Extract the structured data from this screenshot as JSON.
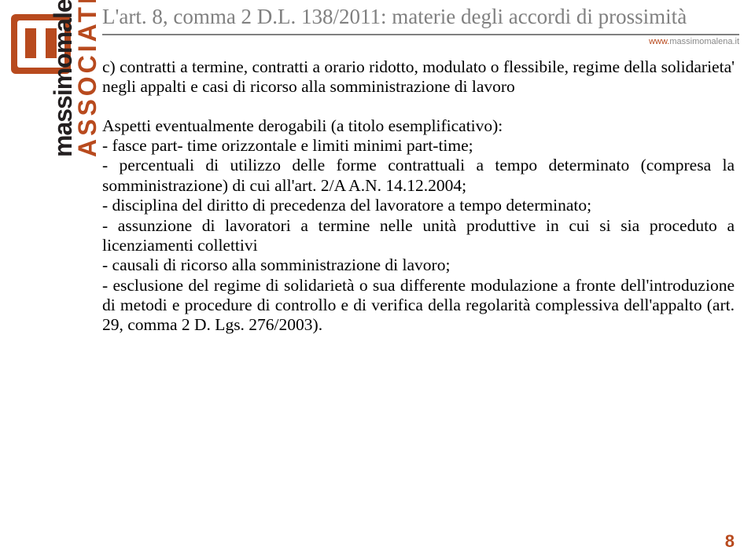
{
  "sidebar": {
    "brand_line1_part1": "massimomalena",
    "brand_line1_amp": "&",
    "brand_line2": "ASSOCIATI",
    "url_prefix": "www.",
    "url_rest": "massimomalena.it"
  },
  "header": {
    "title": "L'art. 8, comma 2 D.L. 138/2011: materie degli accordi di prossimità"
  },
  "body": {
    "para1": "c) contratti a termine, contratti a orario ridotto, modulato o flessibile, regime della solidarieta' negli appalti e casi di ricorso alla somministrazione di lavoro",
    "para2": "Aspetti eventualmente derogabili (a titolo esemplificativo):",
    "b1": "- fasce part- time orizzontale e limiti minimi part-time;",
    "b2": "- percentuali di utilizzo delle forme contrattuali a tempo determinato (compresa la somministrazione) di cui all'art. 2/A A.N. 14.12.2004;",
    "b3": "- disciplina del diritto di precedenza del lavoratore a tempo determinato;",
    "b4": "- assunzione di lavoratori a termine nelle unità produttive in cui si sia proceduto a licenziamenti collettivi",
    "b5": "- causali di ricorso alla somministrazione di lavoro;",
    "b6": "- esclusione del regime di solidarietà o sua differente modulazione a fronte dell'introduzione di metodi e procedure di controllo e di verifica della regolarità complessiva dell'appalto (art. 29, comma 2 D. Lgs. 276/2003)."
  },
  "page": {
    "number": "8"
  },
  "colors": {
    "accent": "#b84a1e",
    "title_gray": "#808080",
    "divider": "#808080",
    "text": "#000000"
  }
}
